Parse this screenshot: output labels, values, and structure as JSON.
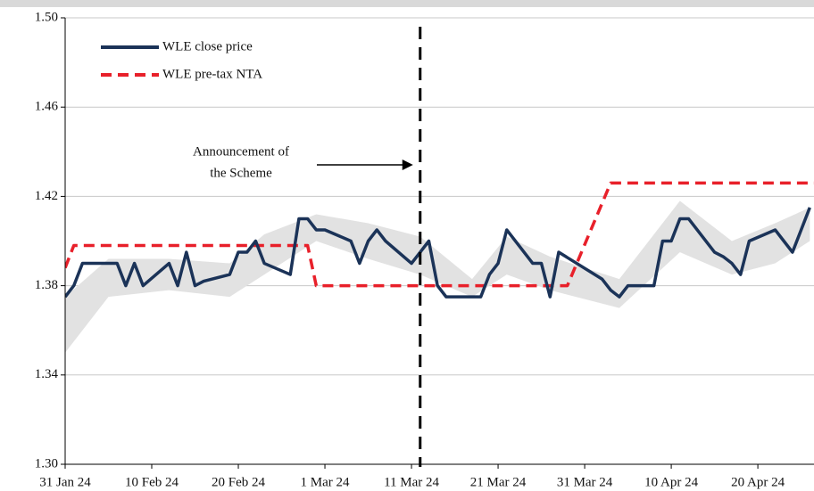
{
  "chart_data": {
    "type": "line",
    "xlim": [
      "2024-01-31",
      "2024-04-27"
    ],
    "xticks": [
      {
        "value": "2024-01-31",
        "label": "31 Jan 24"
      },
      {
        "value": "2024-02-10",
        "label": "10 Feb 24"
      },
      {
        "value": "2024-02-20",
        "label": "20 Feb 24"
      },
      {
        "value": "2024-03-01",
        "label": "1 Mar 24"
      },
      {
        "value": "2024-03-11",
        "label": "11 Mar 24"
      },
      {
        "value": "2024-03-21",
        "label": "21 Mar 24"
      },
      {
        "value": "2024-03-31",
        "label": "31 Mar 24"
      },
      {
        "value": "2024-04-10",
        "label": "10 Apr 24"
      },
      {
        "value": "2024-04-20",
        "label": "20 Apr 24"
      }
    ],
    "ylim": [
      1.3,
      1.5
    ],
    "yticks": [
      {
        "value": 1.3,
        "label": "1.30"
      },
      1.34,
      1.38,
      1.42,
      1.46,
      {
        "value": 1.5,
        "label": "1.50"
      }
    ],
    "grid": true,
    "legend": "top-left",
    "series": [
      {
        "name": "WLE close price",
        "color": "#1b3358",
        "style": "solid",
        "x": [
          "2024-01-31",
          "2024-02-01",
          "2024-02-02",
          "2024-02-05",
          "2024-02-06",
          "2024-02-07",
          "2024-02-08",
          "2024-02-09",
          "2024-02-12",
          "2024-02-13",
          "2024-02-14",
          "2024-02-15",
          "2024-02-16",
          "2024-02-19",
          "2024-02-20",
          "2024-02-21",
          "2024-02-22",
          "2024-02-23",
          "2024-02-26",
          "2024-02-27",
          "2024-02-28",
          "2024-02-29",
          "2024-03-01",
          "2024-03-04",
          "2024-03-05",
          "2024-03-06",
          "2024-03-07",
          "2024-03-08",
          "2024-03-11",
          "2024-03-12",
          "2024-03-13",
          "2024-03-14",
          "2024-03-15",
          "2024-03-18",
          "2024-03-19",
          "2024-03-20",
          "2024-03-21",
          "2024-03-22",
          "2024-03-25",
          "2024-03-26",
          "2024-03-27",
          "2024-03-28",
          "2024-04-02",
          "2024-04-03",
          "2024-04-04",
          "2024-04-05",
          "2024-04-08",
          "2024-04-09",
          "2024-04-10",
          "2024-04-11",
          "2024-04-12",
          "2024-04-15",
          "2024-04-16",
          "2024-04-17",
          "2024-04-18",
          "2024-04-19",
          "2024-04-22",
          "2024-04-23",
          "2024-04-24",
          "2024-04-26"
        ],
        "values": [
          1.375,
          1.38,
          1.39,
          1.39,
          1.39,
          1.38,
          1.39,
          1.38,
          1.39,
          1.38,
          1.395,
          1.38,
          1.382,
          1.385,
          1.395,
          1.395,
          1.4,
          1.39,
          1.385,
          1.41,
          1.41,
          1.405,
          1.405,
          1.4,
          1.39,
          1.4,
          1.405,
          1.4,
          1.39,
          1.395,
          1.4,
          1.38,
          1.375,
          1.375,
          1.375,
          1.385,
          1.39,
          1.405,
          1.39,
          1.39,
          1.375,
          1.395,
          1.383,
          1.378,
          1.375,
          1.38,
          1.38,
          1.4,
          1.4,
          1.41,
          1.41,
          1.395,
          1.393,
          1.39,
          1.385,
          1.4,
          1.405,
          1.4,
          1.395,
          1.415
        ]
      },
      {
        "name": "WLE pre-tax NTA",
        "color": "#e8202a",
        "style": "dashed",
        "x": [
          "2024-01-31",
          "2024-02-01",
          "2024-02-28",
          "2024-02-29",
          "2024-03-29",
          "2024-04-03",
          "2024-04-27"
        ],
        "values": [
          1.388,
          1.398,
          1.398,
          1.38,
          1.38,
          1.426,
          1.426
        ]
      }
    ],
    "band": {
      "color": "#e2e2e2",
      "x": [
        "2024-01-31",
        "2024-02-05",
        "2024-02-12",
        "2024-02-19",
        "2024-02-23",
        "2024-02-29",
        "2024-03-06",
        "2024-03-12",
        "2024-03-18",
        "2024-03-22",
        "2024-03-27",
        "2024-04-04",
        "2024-04-11",
        "2024-04-17",
        "2024-04-22",
        "2024-04-26"
      ],
      "low": [
        1.35,
        1.375,
        1.378,
        1.375,
        1.385,
        1.4,
        1.392,
        1.385,
        1.375,
        1.385,
        1.378,
        1.37,
        1.395,
        1.385,
        1.39,
        1.4
      ],
      "high": [
        1.375,
        1.392,
        1.392,
        1.39,
        1.403,
        1.412,
        1.408,
        1.402,
        1.383,
        1.402,
        1.393,
        1.383,
        1.418,
        1.4,
        1.408,
        1.415
      ]
    },
    "annotation": {
      "x": "2024-03-12",
      "text": [
        "Announcement of",
        "the Scheme"
      ]
    }
  }
}
